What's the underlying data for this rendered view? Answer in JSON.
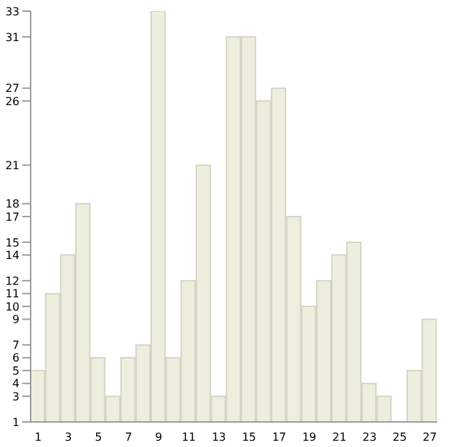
{
  "chart_data": {
    "type": "bar",
    "x": [
      1,
      2,
      3,
      4,
      5,
      6,
      7,
      8,
      9,
      10,
      11,
      12,
      13,
      14,
      15,
      16,
      17,
      18,
      19,
      20,
      21,
      22,
      23,
      24,
      25,
      26,
      27
    ],
    "values": [
      5,
      11,
      14,
      18,
      6,
      3,
      6,
      7,
      33,
      6,
      12,
      21,
      3,
      31,
      31,
      26,
      27,
      17,
      10,
      12,
      14,
      15,
      4,
      3,
      1,
      5,
      9
    ],
    "color": "#eeeedf",
    "xlim": [
      0.5,
      27.5
    ],
    "xticks": [
      1,
      3,
      5,
      7,
      9,
      11,
      13,
      15,
      17,
      19,
      21,
      23,
      25,
      27
    ],
    "ylim": [
      1,
      33
    ],
    "yticks": [
      1,
      3,
      4,
      5,
      6,
      7,
      9,
      10,
      11,
      12,
      14,
      15,
      17,
      18,
      21,
      26,
      27,
      31,
      33
    ]
  }
}
